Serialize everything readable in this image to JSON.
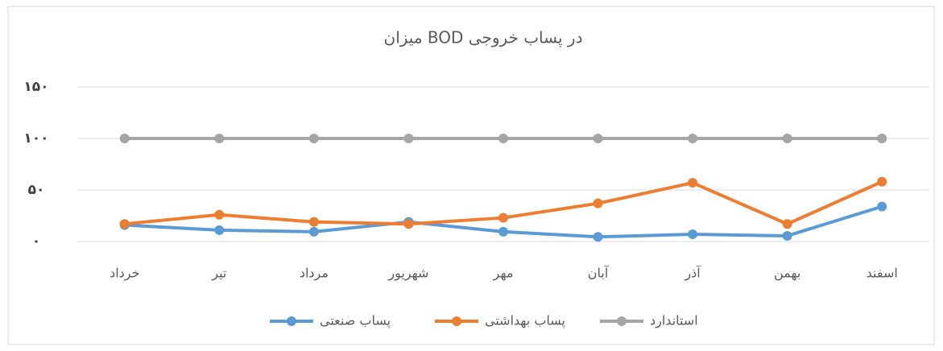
{
  "chart_data": {
    "type": "line",
    "title": "میزان BOD در پساب خروجی",
    "categories": [
      "خرداد",
      "تیر",
      "مرداد",
      "شهریور",
      "مهر",
      "آبان",
      "آذر",
      "بهمن",
      "اسفند"
    ],
    "series": [
      {
        "name": "پساب صنعتی",
        "color": "#5b9bd5",
        "values": [
          16,
          11,
          9.5,
          19,
          9.5,
          4.5,
          7,
          5.5,
          34
        ]
      },
      {
        "name": "پساب بهداشتی",
        "color": "#ed7d31",
        "values": [
          17,
          26,
          19,
          17,
          23,
          37,
          57,
          17,
          58
        ]
      },
      {
        "name": "استاندارد",
        "color": "#a5a5a5",
        "values": [
          100,
          100,
          100,
          100,
          100,
          100,
          100,
          100,
          100
        ]
      }
    ],
    "ylim": [
      0,
      150
    ],
    "yticks": [
      {
        "value": 0,
        "label": "۰"
      },
      {
        "value": 50,
        "label": "۵۰"
      },
      {
        "value": 100,
        "label": "۱۰۰"
      },
      {
        "value": 150,
        "label": "۱۵۰"
      }
    ],
    "grid": true,
    "legend": "bottom"
  }
}
